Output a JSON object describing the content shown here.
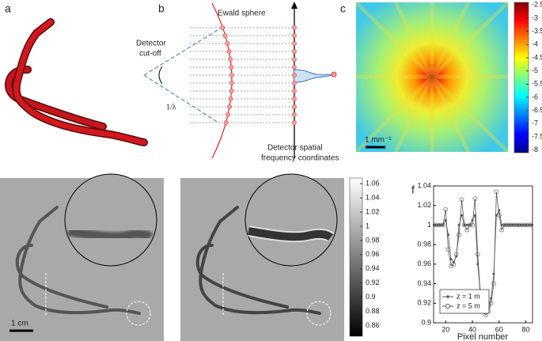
{
  "panel_labels": [
    "a",
    "b",
    "c",
    "d",
    "e",
    "f"
  ],
  "diagram_b": {
    "ewald_label": "Ewald sphere",
    "cutoff_label": [
      "Detector",
      "cut-off"
    ],
    "wavelength_label": "1/λ",
    "coords_label": [
      "Detector spatial",
      "frequency coordinates"
    ]
  },
  "panel_c": {
    "scale_bar": "1 mm⁻¹",
    "colorbar": {
      "lim": [
        -8.1,
        -2.4
      ],
      "ticks": [
        -2.5,
        -3,
        -3.5,
        -4,
        -4.5,
        -5,
        -5.5,
        -6,
        -6.5,
        -7,
        -7.5,
        -8
      ]
    }
  },
  "panel_d": {
    "scale_bar": "1 cm"
  },
  "colorbar_de": {
    "lim": [
      0.845,
      1.068
    ],
    "ticks": [
      1.06,
      1.04,
      1.02,
      1,
      0.98,
      0.96,
      0.94,
      0.92,
      0.9,
      0.88,
      0.86
    ]
  },
  "chart_data": {
    "type": "line",
    "x_label": "Pixel number",
    "x": [
      12,
      14,
      16,
      18,
      20,
      22,
      24,
      26,
      28,
      30,
      32,
      34,
      36,
      38,
      40,
      42,
      44,
      46,
      48,
      50,
      52,
      54,
      56,
      58,
      60,
      62,
      64,
      66,
      68,
      70,
      72,
      74,
      76,
      78,
      80,
      82,
      84
    ],
    "series": [
      {
        "name": "z = 1 m",
        "color": "#555555",
        "marker": "dot",
        "values": [
          1,
          1,
          1,
          1,
          1.005,
          0.99,
          0.965,
          0.962,
          0.968,
          1.0,
          1.01,
          1.0,
          1.0,
          1.0,
          1.005,
          1.01,
          0.96,
          0.93,
          0.915,
          0.912,
          0.915,
          0.925,
          0.95,
          1.01,
          1.015,
          1.0,
          1,
          1,
          1,
          1,
          1,
          1,
          1,
          1,
          1,
          1,
          1
        ]
      },
      {
        "name": "z = 5 m",
        "color": "#555555",
        "marker": "circle",
        "values": [
          1,
          1,
          1,
          1,
          1.016,
          0.975,
          0.958,
          0.96,
          0.97,
          0.99,
          1.026,
          1.0,
          0.995,
          1.0,
          1.0,
          1.027,
          0.97,
          0.93,
          0.912,
          0.908,
          0.912,
          0.92,
          0.94,
          1.034,
          1.01,
          0.995,
          1,
          1,
          1,
          1,
          1,
          1,
          1,
          1,
          1,
          1,
          1
        ]
      }
    ],
    "xlim": [
      11,
      85
    ],
    "ylim": [
      0.9,
      1.04
    ],
    "xticks": [
      20,
      40,
      60,
      80
    ],
    "yticks": [
      0.9,
      0.92,
      0.94,
      0.96,
      0.98,
      1,
      1.02,
      1.04
    ],
    "legend": "bottom-left"
  }
}
